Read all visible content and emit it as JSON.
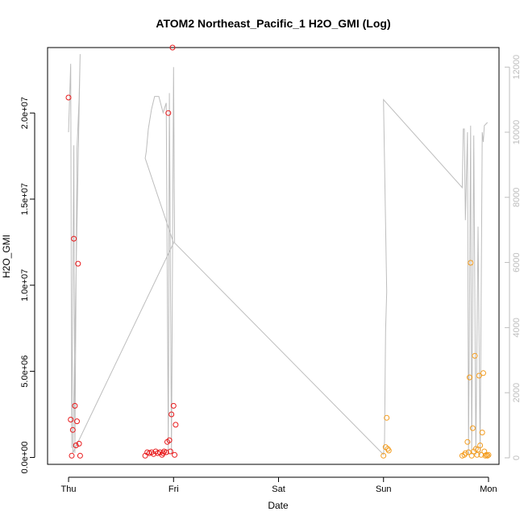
{
  "chart_data": {
    "type": "scatter",
    "title": "ATOM2 Northeast_Pacific_1 H2O_GMI (Log)",
    "xlabel": "Date",
    "ylabel": "H2O_GMI",
    "x_ticks": [
      "Thu",
      "Fri",
      "Sat",
      "Sun",
      "Mon"
    ],
    "x_range_days": [
      -0.2,
      4.1
    ],
    "ylim": [
      -400000,
      23800000
    ],
    "y_ticks": [
      0,
      5000000,
      10000000,
      15000000,
      20000000
    ],
    "y_tick_labels": [
      "0.0e+00",
      "5.0e+06",
      "1.0e+07",
      "1.5e+07",
      "2.0e+07"
    ],
    "y2lim": [
      -200,
      12600
    ],
    "y2_ticks": [
      0,
      2000,
      4000,
      6000,
      8000,
      10000,
      12000
    ],
    "y2_tick_labels": [
      "0",
      "2000",
      "4000",
      "6000",
      "8000",
      "10000",
      "12000"
    ],
    "colors": {
      "series_red": "#e8191b",
      "series_orange": "#f39c1e",
      "line": "#bdbdbd"
    },
    "series": [
      {
        "color": "series_red",
        "points": [
          [
            0.0,
            20900000
          ],
          [
            0.02,
            2200000
          ],
          [
            0.03,
            100000
          ],
          [
            0.04,
            1600000
          ],
          [
            0.05,
            12700000
          ],
          [
            0.06,
            3000000
          ],
          [
            0.07,
            700000
          ],
          [
            0.08,
            2100000
          ],
          [
            0.09,
            11250000
          ],
          [
            0.1,
            800000
          ],
          [
            0.11,
            100000
          ],
          [
            0.73,
            100000
          ],
          [
            0.75,
            300000
          ],
          [
            0.77,
            250000
          ],
          [
            0.79,
            300000
          ],
          [
            0.81,
            200000
          ],
          [
            0.83,
            350000
          ],
          [
            0.85,
            250000
          ],
          [
            0.87,
            300000
          ],
          [
            0.89,
            150000
          ],
          [
            0.9,
            250000
          ],
          [
            0.91,
            350000
          ],
          [
            0.93,
            300000
          ],
          [
            0.94,
            900000
          ],
          [
            0.95,
            20000000
          ],
          [
            0.96,
            1000000
          ],
          [
            0.97,
            350000
          ],
          [
            0.98,
            2500000
          ],
          [
            0.99,
            23800000
          ],
          [
            1.0,
            3000000
          ],
          [
            1.01,
            150000
          ],
          [
            1.02,
            1900000
          ]
        ]
      },
      {
        "color": "series_orange",
        "points": [
          [
            3.0,
            100000
          ],
          [
            3.02,
            600000
          ],
          [
            3.03,
            2300000
          ],
          [
            3.04,
            500000
          ],
          [
            3.05,
            400000
          ],
          [
            3.75,
            100000
          ],
          [
            3.77,
            150000
          ],
          [
            3.78,
            250000
          ],
          [
            3.8,
            900000
          ],
          [
            3.81,
            300000
          ],
          [
            3.82,
            4650000
          ],
          [
            3.83,
            11300000
          ],
          [
            3.84,
            100000
          ],
          [
            3.85,
            1700000
          ],
          [
            3.86,
            350000
          ],
          [
            3.87,
            5900000
          ],
          [
            3.88,
            500000
          ],
          [
            3.89,
            150000
          ],
          [
            3.9,
            450000
          ],
          [
            3.91,
            4750000
          ],
          [
            3.92,
            700000
          ],
          [
            3.93,
            150000
          ],
          [
            3.94,
            1450000
          ],
          [
            3.95,
            4900000
          ],
          [
            3.96,
            350000
          ],
          [
            3.97,
            100000
          ],
          [
            3.98,
            150000
          ],
          [
            3.99,
            100000
          ],
          [
            4.0,
            150000
          ]
        ]
      }
    ],
    "line_y2": [
      [
        0.0,
        10000
      ],
      [
        0.02,
        12100
      ],
      [
        0.03,
        300
      ],
      [
        0.05,
        9600
      ],
      [
        0.06,
        150
      ],
      [
        0.08,
        9500
      ],
      [
        0.1,
        11000
      ],
      [
        0.11,
        12400
      ],
      [
        0.04,
        150
      ],
      [
        1.0,
        6600
      ],
      [
        0.73,
        9200
      ],
      [
        0.74,
        9400
      ],
      [
        0.76,
        10100
      ],
      [
        0.79,
        10700
      ],
      [
        0.82,
        11100
      ],
      [
        0.86,
        11100
      ],
      [
        0.9,
        10600
      ],
      [
        0.93,
        10900
      ],
      [
        0.95,
        100
      ],
      [
        0.96,
        11200
      ],
      [
        0.98,
        150
      ],
      [
        1.0,
        12000
      ],
      [
        1.01,
        6600
      ],
      [
        3.0,
        100
      ],
      [
        3.01,
        500
      ],
      [
        3.02,
        3900
      ],
      [
        3.03,
        5100
      ],
      [
        3.0,
        11000
      ],
      [
        3.75,
        8300
      ],
      [
        3.76,
        10100
      ],
      [
        3.77,
        10100
      ],
      [
        3.78,
        7300
      ],
      [
        3.8,
        10000
      ],
      [
        3.81,
        100
      ],
      [
        3.83,
        10200
      ],
      [
        3.84,
        100
      ],
      [
        3.86,
        9900
      ],
      [
        3.88,
        100
      ],
      [
        3.9,
        7100
      ],
      [
        3.92,
        100
      ],
      [
        3.94,
        10000
      ],
      [
        3.95,
        9700
      ],
      [
        3.96,
        10200
      ],
      [
        3.99,
        10300
      ]
    ]
  }
}
